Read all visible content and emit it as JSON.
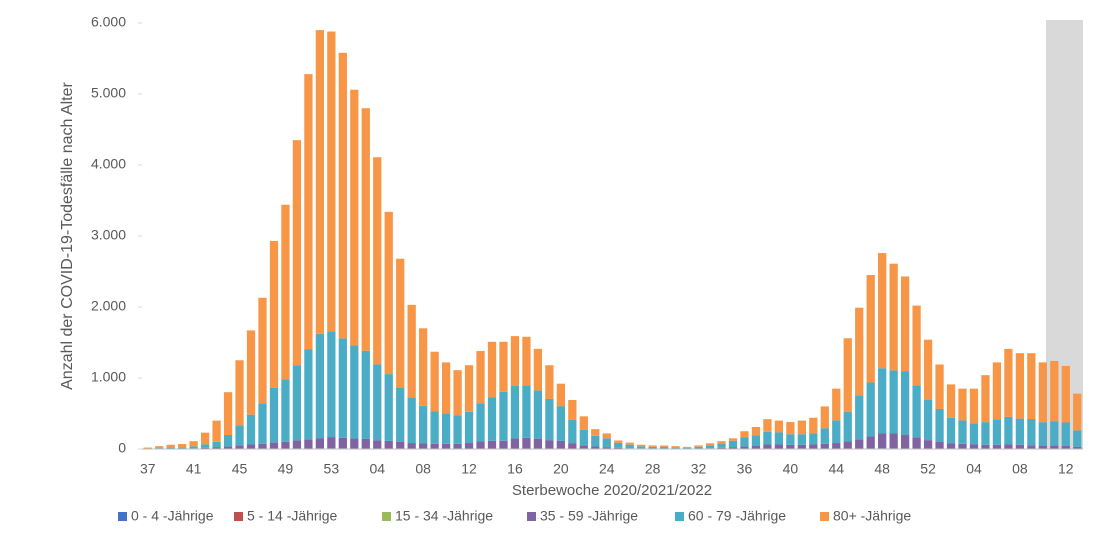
{
  "chart_data": {
    "type": "stacked_bar",
    "y_label": "Anzahl der COVID-19-Todesfälle nach Alter",
    "x_label": "Sterbewoche 2020/2021/2022",
    "categories": [
      "37",
      null,
      null,
      null,
      "41",
      null,
      null,
      null,
      "45",
      null,
      null,
      null,
      "49",
      null,
      null,
      null,
      "53",
      null,
      null,
      null,
      "04",
      null,
      null,
      null,
      "08",
      null,
      null,
      null,
      "12",
      null,
      null,
      null,
      "16",
      null,
      null,
      null,
      "20",
      null,
      null,
      null,
      "24",
      null,
      null,
      null,
      "28",
      null,
      null,
      null,
      "32",
      null,
      null,
      null,
      "36",
      null,
      null,
      null,
      "40",
      null,
      null,
      null,
      "44",
      null,
      null,
      null,
      "48",
      null,
      null,
      null,
      "52",
      null,
      null,
      null,
      "04",
      null,
      null,
      null,
      "08",
      null,
      null,
      null,
      "12",
      null
    ],
    "ylim": [
      0,
      6000
    ],
    "yticks": [
      0,
      {
        "value": 1000,
        "label": "1.000"
      },
      {
        "value": 2000,
        "label": "2.000"
      },
      {
        "value": 3000,
        "label": "3.000"
      },
      {
        "value": 4000,
        "label": "4.000"
      },
      {
        "value": 5000,
        "label": "5.000"
      },
      {
        "value": 6000,
        "label": "6.000"
      }
    ],
    "grid": false,
    "legend": "bottom",
    "series": [
      {
        "name": "0 - 4 -Jährige",
        "color": "#4472c4",
        "values": [
          0,
          0,
          0,
          0,
          0,
          0,
          0,
          0,
          0,
          0,
          0,
          0,
          0,
          0,
          0,
          0,
          0,
          0,
          0,
          0,
          0,
          0,
          0,
          0,
          0,
          0,
          0,
          0,
          0,
          0,
          0,
          0,
          0,
          0,
          0,
          0,
          0,
          0,
          0,
          0,
          0,
          0,
          0,
          0,
          0,
          0,
          0,
          0,
          0,
          0,
          0,
          0,
          0,
          0,
          0,
          0,
          0,
          0,
          0,
          0,
          0,
          0,
          0,
          0,
          0,
          0,
          0,
          0,
          0,
          0,
          0,
          0,
          0,
          0,
          0,
          0,
          0,
          0,
          0,
          0,
          0,
          0
        ]
      },
      {
        "name": "5 - 14 -Jährige",
        "color": "#c0504d",
        "values": [
          0,
          0,
          0,
          0,
          0,
          0,
          0,
          0,
          0,
          0,
          0,
          0,
          0,
          0,
          0,
          0,
          0,
          0,
          0,
          0,
          0,
          0,
          0,
          0,
          0,
          0,
          0,
          0,
          0,
          0,
          0,
          0,
          0,
          0,
          0,
          0,
          0,
          0,
          0,
          0,
          0,
          0,
          0,
          0,
          0,
          0,
          0,
          0,
          0,
          0,
          0,
          0,
          0,
          0,
          0,
          0,
          0,
          0,
          0,
          0,
          0,
          0,
          0,
          0,
          0,
          0,
          0,
          0,
          0,
          0,
          0,
          0,
          0,
          0,
          0,
          0,
          0,
          0,
          0,
          0,
          0,
          0
        ]
      },
      {
        "name": "15 - 34 -Jährige",
        "color": "#9bbb59",
        "values": [
          0,
          0,
          0,
          0,
          0,
          1,
          1,
          2,
          3,
          3,
          4,
          5,
          5,
          6,
          7,
          8,
          8,
          8,
          7,
          7,
          6,
          5,
          4,
          4,
          3,
          3,
          3,
          3,
          4,
          5,
          6,
          6,
          7,
          7,
          6,
          5,
          4,
          3,
          2,
          1,
          1,
          1,
          0,
          0,
          0,
          0,
          0,
          0,
          0,
          1,
          1,
          1,
          2,
          2,
          3,
          3,
          3,
          3,
          3,
          3,
          4,
          5,
          6,
          7,
          8,
          8,
          7,
          6,
          5,
          4,
          3,
          3,
          3,
          3,
          3,
          3,
          3,
          3,
          3,
          3,
          3,
          2
        ]
      },
      {
        "name": "35 - 59 -Jährige",
        "color": "#8064a2",
        "values": [
          2,
          3,
          5,
          5,
          8,
          15,
          20,
          35,
          50,
          60,
          70,
          85,
          95,
          115,
          130,
          145,
          160,
          150,
          140,
          135,
          115,
          110,
          95,
          80,
          75,
          70,
          70,
          70,
          80,
          100,
          110,
          110,
          140,
          150,
          140,
          120,
          110,
          80,
          50,
          35,
          25,
          15,
          10,
          8,
          6,
          6,
          5,
          4,
          6,
          10,
          15,
          25,
          35,
          40,
          60,
          60,
          55,
          55,
          60,
          70,
          80,
          100,
          130,
          170,
          210,
          210,
          190,
          160,
          120,
          100,
          75,
          70,
          60,
          55,
          55,
          60,
          55,
          50,
          45,
          45,
          40,
          30
        ]
      },
      {
        "name": "60 - 79 -Jährige",
        "color": "#4bacc6",
        "values": [
          5,
          10,
          15,
          20,
          30,
          50,
          80,
          160,
          280,
          420,
          570,
          770,
          880,
          1060,
          1270,
          1470,
          1490,
          1400,
          1310,
          1240,
          1070,
          940,
          760,
          640,
          530,
          460,
          430,
          400,
          440,
          540,
          610,
          690,
          740,
          740,
          680,
          580,
          490,
          330,
          220,
          150,
          125,
          70,
          50,
          30,
          25,
          25,
          20,
          15,
          25,
          40,
          60,
          90,
          130,
          150,
          180,
          170,
          150,
          150,
          160,
          220,
          320,
          420,
          620,
          760,
          920,
          890,
          900,
          730,
          570,
          460,
          360,
          330,
          300,
          320,
          360,
          390,
          370,
          370,
          330,
          340,
          330,
          230
        ]
      },
      {
        "name": "80+ -Jährige",
        "color": "#f79646",
        "values": [
          13,
          27,
          40,
          45,
          72,
          164,
          299,
          603,
          917,
          1187,
          1486,
          2070,
          2460,
          3169,
          3873,
          4277,
          4222,
          4022,
          3603,
          3418,
          2919,
          2285,
          1821,
          1306,
          1092,
          837,
          717,
          637,
          656,
          735,
          784,
          704,
          703,
          683,
          584,
          475,
          316,
          277,
          188,
          94,
          69,
          34,
          30,
          22,
          19,
          19,
          15,
          11,
          19,
          29,
          34,
          34,
          83,
          118,
          177,
          167,
          172,
          192,
          217,
          307,
          446,
          1035,
          1234,
          1513,
          1622,
          1502,
          1333,
          1124,
          845,
          626,
          472,
          447,
          487,
          662,
          802,
          957,
          922,
          927,
          842,
          852,
          797,
          518
        ]
      }
    ]
  }
}
